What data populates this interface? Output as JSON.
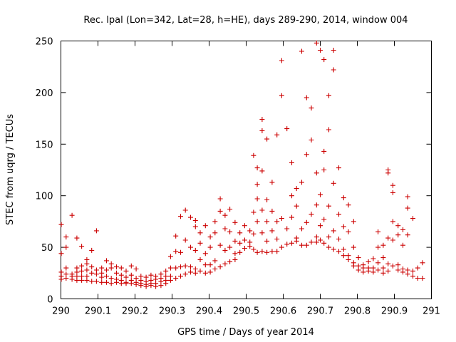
{
  "chart_data": {
    "type": "scatter",
    "title": "Rec. lpal (Lon=342, Lat=28, h=HE), days 289-290, 2014, window 004",
    "xlabel": "GPS time / Days of year 2014",
    "ylabel": "STEC from uqrg / TECUs",
    "xlim": [
      290,
      291
    ],
    "ylim": [
      0,
      250
    ],
    "xticks": [
      290,
      290.1,
      290.2,
      290.3,
      290.4,
      290.5,
      290.6,
      290.7,
      290.8,
      290.9,
      291
    ],
    "xtick_labels": [
      "290",
      "290.1",
      "290.2",
      "290.3",
      "290.4",
      "290.5",
      "290.6",
      "290.7",
      "290.8",
      "290.9",
      "291"
    ],
    "yticks": [
      0,
      50,
      100,
      150,
      200,
      250
    ],
    "ytick_labels": [
      "0",
      "50",
      "100",
      "150",
      "200",
      "250"
    ],
    "grid": false,
    "marker": "plus",
    "color": "#cc0000",
    "series": [
      {
        "points": [
          [
            290.001,
            72
          ],
          [
            290.001,
            44
          ],
          [
            290.001,
            26
          ],
          [
            290.001,
            22
          ],
          [
            290.001,
            19
          ],
          [
            290.014,
            60
          ],
          [
            290.014,
            50
          ],
          [
            290.014,
            30
          ],
          [
            290.014,
            24
          ],
          [
            290.014,
            20
          ],
          [
            290.03,
            81
          ],
          [
            290.03,
            24
          ],
          [
            290.03,
            22
          ],
          [
            290.03,
            19
          ],
          [
            290.043,
            59
          ],
          [
            290.043,
            30
          ],
          [
            290.043,
            26
          ],
          [
            290.043,
            22
          ],
          [
            290.043,
            18
          ],
          [
            290.056,
            51
          ],
          [
            290.056,
            32
          ],
          [
            290.056,
            27
          ],
          [
            290.056,
            22
          ],
          [
            290.056,
            18
          ],
          [
            290.07,
            38
          ],
          [
            290.07,
            34
          ],
          [
            290.07,
            28
          ],
          [
            290.07,
            22
          ],
          [
            290.07,
            18
          ],
          [
            290.083,
            47
          ],
          [
            290.083,
            31
          ],
          [
            290.083,
            25
          ],
          [
            290.083,
            17
          ],
          [
            290.096,
            66
          ],
          [
            290.096,
            28
          ],
          [
            290.096,
            24
          ],
          [
            290.096,
            17
          ],
          [
            290.11,
            30
          ],
          [
            290.11,
            25
          ],
          [
            290.11,
            21
          ],
          [
            290.11,
            16
          ],
          [
            290.123,
            37
          ],
          [
            290.123,
            28
          ],
          [
            290.123,
            22
          ],
          [
            290.123,
            16
          ],
          [
            290.136,
            34
          ],
          [
            290.136,
            30
          ],
          [
            290.136,
            20
          ],
          [
            290.136,
            15
          ],
          [
            290.15,
            31
          ],
          [
            290.15,
            25
          ],
          [
            290.15,
            19
          ],
          [
            290.15,
            16
          ],
          [
            290.163,
            30
          ],
          [
            290.163,
            23
          ],
          [
            290.163,
            18
          ],
          [
            290.163,
            15
          ],
          [
            290.176,
            27
          ],
          [
            290.176,
            21
          ],
          [
            290.176,
            16
          ],
          [
            290.176,
            15
          ],
          [
            290.19,
            32
          ],
          [
            290.19,
            23
          ],
          [
            290.19,
            18
          ],
          [
            290.19,
            15
          ],
          [
            290.203,
            29
          ],
          [
            290.203,
            20
          ],
          [
            290.203,
            16
          ],
          [
            290.203,
            14
          ],
          [
            290.216,
            22
          ],
          [
            290.216,
            18
          ],
          [
            290.216,
            15
          ],
          [
            290.216,
            13
          ],
          [
            290.23,
            21
          ],
          [
            290.23,
            17
          ],
          [
            290.23,
            14
          ],
          [
            290.23,
            12
          ],
          [
            290.243,
            23
          ],
          [
            290.243,
            18
          ],
          [
            290.243,
            15
          ],
          [
            290.243,
            13
          ],
          [
            290.256,
            22
          ],
          [
            290.256,
            19
          ],
          [
            290.256,
            15
          ],
          [
            290.256,
            12
          ],
          [
            290.27,
            24
          ],
          [
            290.27,
            20
          ],
          [
            290.27,
            17
          ],
          [
            290.27,
            13
          ],
          [
            290.283,
            27
          ],
          [
            290.283,
            22
          ],
          [
            290.283,
            18
          ],
          [
            290.283,
            15
          ],
          [
            290.296,
            41
          ],
          [
            290.296,
            30
          ],
          [
            290.296,
            22
          ],
          [
            290.296,
            18
          ],
          [
            290.31,
            61
          ],
          [
            290.31,
            46
          ],
          [
            290.31,
            30
          ],
          [
            290.31,
            20
          ],
          [
            290.323,
            80
          ],
          [
            290.323,
            45
          ],
          [
            290.323,
            31
          ],
          [
            290.323,
            22
          ],
          [
            290.336,
            86
          ],
          [
            290.336,
            57
          ],
          [
            290.336,
            32
          ],
          [
            290.336,
            24
          ],
          [
            290.35,
            79
          ],
          [
            290.35,
            50
          ],
          [
            290.35,
            31
          ],
          [
            290.35,
            26
          ],
          [
            290.363,
            76
          ],
          [
            290.363,
            70
          ],
          [
            290.363,
            47
          ],
          [
            290.363,
            29
          ],
          [
            290.363,
            25
          ],
          [
            290.376,
            64
          ],
          [
            290.376,
            54
          ],
          [
            290.376,
            38
          ],
          [
            290.376,
            27
          ],
          [
            290.39,
            71
          ],
          [
            290.39,
            44
          ],
          [
            290.39,
            33
          ],
          [
            290.39,
            25
          ],
          [
            290.403,
            60
          ],
          [
            290.403,
            50
          ],
          [
            290.403,
            33
          ],
          [
            290.403,
            26
          ],
          [
            290.416,
            75
          ],
          [
            290.416,
            64
          ],
          [
            290.416,
            37
          ],
          [
            290.416,
            29
          ],
          [
            290.43,
            97
          ],
          [
            290.43,
            85
          ],
          [
            290.43,
            52
          ],
          [
            290.43,
            31
          ],
          [
            290.443,
            81
          ],
          [
            290.443,
            68
          ],
          [
            290.443,
            47
          ],
          [
            290.443,
            34
          ],
          [
            290.456,
            87
          ],
          [
            290.456,
            65
          ],
          [
            290.456,
            50
          ],
          [
            290.456,
            36
          ],
          [
            290.47,
            74
          ],
          [
            290.47,
            56
          ],
          [
            290.47,
            44
          ],
          [
            290.47,
            38
          ],
          [
            290.483,
            64
          ],
          [
            290.483,
            54
          ],
          [
            290.483,
            45
          ],
          [
            290.496,
            71
          ],
          [
            290.496,
            57
          ],
          [
            290.496,
            49
          ],
          [
            290.51,
            66
          ],
          [
            290.51,
            55
          ],
          [
            290.51,
            51
          ],
          [
            290.52,
            139
          ],
          [
            290.52,
            84
          ],
          [
            290.52,
            63
          ],
          [
            290.52,
            48
          ],
          [
            290.53,
            127
          ],
          [
            290.53,
            111
          ],
          [
            290.53,
            97
          ],
          [
            290.53,
            75
          ],
          [
            290.53,
            45
          ],
          [
            290.543,
            174
          ],
          [
            290.543,
            163
          ],
          [
            290.543,
            124
          ],
          [
            290.543,
            86
          ],
          [
            290.543,
            64
          ],
          [
            290.543,
            46
          ],
          [
            290.556,
            155
          ],
          [
            290.556,
            96
          ],
          [
            290.556,
            75
          ],
          [
            290.556,
            56
          ],
          [
            290.556,
            45
          ],
          [
            290.57,
            113
          ],
          [
            290.57,
            85
          ],
          [
            290.57,
            66
          ],
          [
            290.57,
            46
          ],
          [
            290.583,
            159
          ],
          [
            290.583,
            75
          ],
          [
            290.583,
            58
          ],
          [
            290.583,
            46
          ],
          [
            290.596,
            231
          ],
          [
            290.596,
            197
          ],
          [
            290.596,
            78
          ],
          [
            290.596,
            50
          ],
          [
            290.61,
            165
          ],
          [
            290.61,
            68
          ],
          [
            290.61,
            53
          ],
          [
            290.623,
            132
          ],
          [
            290.623,
            100
          ],
          [
            290.623,
            79
          ],
          [
            290.623,
            54
          ],
          [
            290.636,
            107
          ],
          [
            290.636,
            90
          ],
          [
            290.636,
            59
          ],
          [
            290.636,
            56
          ],
          [
            290.65,
            240
          ],
          [
            290.65,
            113
          ],
          [
            290.65,
            68
          ],
          [
            290.65,
            52
          ],
          [
            290.663,
            195
          ],
          [
            290.663,
            140
          ],
          [
            290.663,
            74
          ],
          [
            290.663,
            52
          ],
          [
            290.676,
            185
          ],
          [
            290.676,
            154
          ],
          [
            290.676,
            82
          ],
          [
            290.676,
            55
          ],
          [
            290.69,
            248
          ],
          [
            290.69,
            122
          ],
          [
            290.69,
            91
          ],
          [
            290.69,
            60
          ],
          [
            290.69,
            55
          ],
          [
            290.7,
            241
          ],
          [
            290.7,
            101
          ],
          [
            290.7,
            71
          ],
          [
            290.7,
            57
          ],
          [
            290.71,
            232
          ],
          [
            290.71,
            143
          ],
          [
            290.71,
            125
          ],
          [
            290.71,
            77
          ],
          [
            290.71,
            54
          ],
          [
            290.723,
            197
          ],
          [
            290.723,
            164
          ],
          [
            290.723,
            90
          ],
          [
            290.723,
            60
          ],
          [
            290.723,
            50
          ],
          [
            290.736,
            241
          ],
          [
            290.736,
            222
          ],
          [
            290.736,
            112
          ],
          [
            290.736,
            66
          ],
          [
            290.736,
            48
          ],
          [
            290.75,
            127
          ],
          [
            290.75,
            82
          ],
          [
            290.75,
            58
          ],
          [
            290.75,
            46
          ],
          [
            290.763,
            98
          ],
          [
            290.763,
            70
          ],
          [
            290.763,
            48
          ],
          [
            290.763,
            42
          ],
          [
            290.776,
            91
          ],
          [
            290.776,
            65
          ],
          [
            290.776,
            42
          ],
          [
            290.776,
            38
          ],
          [
            290.79,
            75
          ],
          [
            290.79,
            50
          ],
          [
            290.79,
            35
          ],
          [
            290.79,
            32
          ],
          [
            290.803,
            40
          ],
          [
            290.803,
            32
          ],
          [
            290.803,
            28
          ],
          [
            290.816,
            33
          ],
          [
            290.816,
            30
          ],
          [
            290.816,
            26
          ],
          [
            290.83,
            36
          ],
          [
            290.83,
            30
          ],
          [
            290.83,
            27
          ],
          [
            290.843,
            39
          ],
          [
            290.843,
            30
          ],
          [
            290.843,
            26
          ],
          [
            290.856,
            65
          ],
          [
            290.856,
            50
          ],
          [
            290.856,
            35
          ],
          [
            290.856,
            28
          ],
          [
            290.87,
            52
          ],
          [
            290.87,
            40
          ],
          [
            290.87,
            30
          ],
          [
            290.87,
            25
          ],
          [
            290.883,
            125
          ],
          [
            290.883,
            122
          ],
          [
            290.883,
            59
          ],
          [
            290.883,
            34
          ],
          [
            290.883,
            27
          ],
          [
            290.896,
            110
          ],
          [
            290.896,
            103
          ],
          [
            290.896,
            75
          ],
          [
            290.896,
            57
          ],
          [
            290.896,
            32
          ],
          [
            290.91,
            71
          ],
          [
            290.91,
            62
          ],
          [
            290.91,
            33
          ],
          [
            290.91,
            28
          ],
          [
            290.923,
            67
          ],
          [
            290.923,
            52
          ],
          [
            290.923,
            29
          ],
          [
            290.923,
            26
          ],
          [
            290.936,
            99
          ],
          [
            290.936,
            88
          ],
          [
            290.936,
            62
          ],
          [
            290.936,
            28
          ],
          [
            290.936,
            24
          ],
          [
            290.95,
            78
          ],
          [
            290.95,
            27
          ],
          [
            290.95,
            22
          ],
          [
            290.963,
            30
          ],
          [
            290.963,
            20
          ],
          [
            290.976,
            35
          ],
          [
            290.976,
            20
          ]
        ]
      }
    ]
  }
}
